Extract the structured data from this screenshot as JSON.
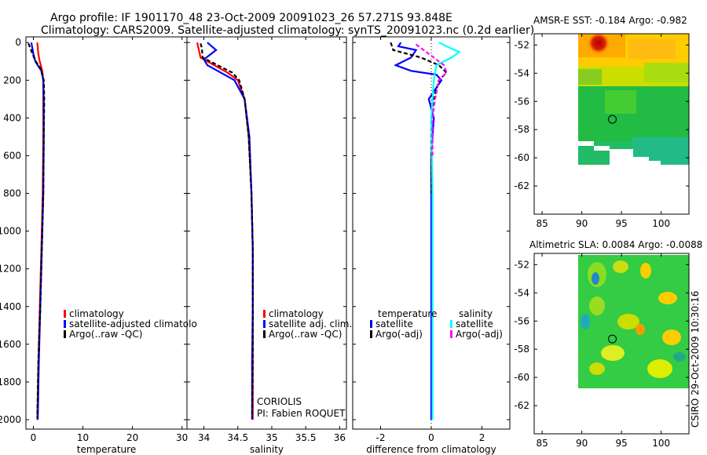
{
  "header": {
    "line1": "Argo profile: IF 1901170_48 23-Oct-2009 20091023_26 57.271S 93.848E",
    "line2": "Climatology: CARS2009. Satellite-adjusted climatology: synTS_20091023.nc (0.2d earlier)"
  },
  "colors": {
    "climatology": "#ff0000",
    "satellite": "#0000ff",
    "argo": "#000000",
    "sal_satellite": "#00ffff",
    "sal_argo": "#ff00ff"
  },
  "footer": {
    "provider": "CORIOLIS",
    "pi": "PI: Fabien ROQUET",
    "stamp": "CSIRO 29-Oct-2009 10:30:16"
  },
  "chart_data": [
    {
      "type": "line",
      "name": "temperature",
      "xlabel": "temperature",
      "xlim": [
        -1.5,
        31
      ],
      "ylim": [
        2050,
        -30
      ],
      "xticks": [
        0,
        10,
        20,
        30
      ],
      "yticks": [
        0,
        200,
        400,
        600,
        800,
        1000,
        1200,
        1400,
        1600,
        1800,
        2000
      ],
      "legend": {
        "position": "lower-middle",
        "entries": [
          "climatology",
          "satellite-adjusted climatolo",
          "Argo(..raw -QC)"
        ]
      },
      "series": [
        {
          "name": "climatology",
          "color": "#ff0000",
          "dash": "",
          "x": [
            0.8,
            0.9,
            1.0,
            1.2,
            1.8,
            2.0,
            2.0,
            2.0,
            1.9,
            1.6,
            1.3,
            1.0,
            0.8
          ],
          "y": [
            0,
            30,
            60,
            90,
            150,
            200,
            300,
            500,
            800,
            1100,
            1400,
            1700,
            2000
          ]
        },
        {
          "name": "satellite-adjusted climatology",
          "color": "#0000ff",
          "dash": "",
          "x": [
            -0.4,
            -0.2,
            0.0,
            0.4,
            1.6,
            2.0,
            2.1,
            2.1,
            2.0,
            1.7,
            1.4,
            1.1,
            0.9
          ],
          "y": [
            0,
            30,
            60,
            100,
            150,
            200,
            300,
            500,
            800,
            1100,
            1400,
            1700,
            2000
          ]
        },
        {
          "name": "Argo(..raw -QC)",
          "color": "#000000",
          "dash": "5,3",
          "x": [
            -1.0,
            -0.6,
            -0.2,
            0.5,
            1.5,
            2.1,
            2.2,
            2.1,
            2.0,
            1.7,
            1.4,
            1.0,
            0.8
          ],
          "y": [
            5,
            30,
            60,
            100,
            140,
            200,
            300,
            500,
            800,
            1100,
            1400,
            1700,
            1990
          ]
        }
      ]
    },
    {
      "type": "line",
      "name": "salinity",
      "xlabel": "salinity",
      "xlim": [
        33.75,
        36.1
      ],
      "ylim": [
        2050,
        -30
      ],
      "xticks": [
        34,
        34.5,
        35,
        35.5,
        36
      ],
      "xticklabels": [
        "34",
        "34.5",
        "35",
        "35.5",
        "36"
      ],
      "legend": {
        "position": "lower-middle",
        "entries": [
          "climatology",
          "satellite adj. clim.",
          "Argo(..raw -QC)"
        ]
      },
      "series": [
        {
          "name": "climatology",
          "color": "#ff0000",
          "dash": "",
          "x": [
            33.9,
            33.92,
            33.95,
            34.15,
            34.35,
            34.5,
            34.6,
            34.66,
            34.7,
            34.72,
            34.72,
            34.72,
            34.72
          ],
          "y": [
            0,
            30,
            80,
            120,
            160,
            200,
            300,
            500,
            800,
            1100,
            1400,
            1700,
            2000
          ]
        },
        {
          "name": "satellite adj. clim.",
          "color": "#0000ff",
          "dash": "",
          "x": [
            34.05,
            34.18,
            34.0,
            34.05,
            34.25,
            34.45,
            34.6,
            34.67,
            34.7,
            34.72,
            34.72,
            34.71,
            34.71
          ],
          "y": [
            0,
            40,
            90,
            120,
            160,
            200,
            300,
            500,
            800,
            1100,
            1400,
            1700,
            2000
          ]
        },
        {
          "name": "Argo(..raw -QC)",
          "color": "#000000",
          "dash": "5,3",
          "x": [
            33.95,
            33.97,
            33.98,
            34.2,
            34.42,
            34.52,
            34.6,
            34.66,
            34.7,
            34.72,
            34.72,
            34.72,
            34.71
          ],
          "y": [
            5,
            30,
            80,
            120,
            160,
            200,
            300,
            500,
            800,
            1100,
            1400,
            1700,
            1990
          ]
        }
      ]
    },
    {
      "type": "line",
      "name": "difference",
      "xlabel": "difference from climatology",
      "xlim": [
        -3.1,
        3.1
      ],
      "ylim": [
        2050,
        -30
      ],
      "xticks": [
        -2,
        0,
        2
      ],
      "legend": {
        "position": "lower-middle",
        "headers": [
          "temperature",
          "salinity"
        ],
        "entries": [
          "satellite",
          "Argo(-adj)",
          "satellite",
          "Argo(-adj)"
        ]
      },
      "series": [
        {
          "name": "temperature satellite",
          "color": "#0000ff",
          "dash": "",
          "x": [
            -1.2,
            -1.3,
            -0.6,
            -0.8,
            -1.4,
            -0.8,
            0.2,
            0.4,
            -0.1,
            0.1,
            0.0,
            0.0,
            0.0,
            0.0
          ],
          "y": [
            0,
            20,
            40,
            80,
            120,
            150,
            170,
            200,
            300,
            400,
            600,
            1000,
            1500,
            2000
          ]
        },
        {
          "name": "temperature Argo(-adj)",
          "color": "#000000",
          "dash": "5,3",
          "x": [
            -1.6,
            -1.5,
            -0.4,
            0.3,
            0.6,
            0.3,
            0.1,
            0.0,
            0.0,
            0.0
          ],
          "y": [
            0,
            40,
            80,
            120,
            160,
            200,
            300,
            400,
            600,
            800
          ]
        },
        {
          "name": "salinity satellite",
          "color": "#00ffff",
          "dash": "",
          "x": [
            0.3,
            0.6,
            1.1,
            0.8,
            0.2,
            0.1,
            0.0,
            0.05,
            0.05,
            0.05
          ],
          "y": [
            0,
            20,
            50,
            80,
            120,
            200,
            400,
            800,
            1400,
            2000
          ]
        },
        {
          "name": "salinity Argo(-adj)",
          "color": "#ff00ff",
          "dash": "5,3",
          "x": [
            -0.6,
            -0.1,
            0.5,
            0.6,
            0.3,
            0.15,
            0.05,
            0.05
          ],
          "y": [
            10,
            60,
            120,
            160,
            200,
            300,
            400,
            600
          ]
        }
      ]
    },
    {
      "type": "heatmap",
      "name": "sst-map",
      "title": "AMSR-E SST: -0.184  Argo: -0.982",
      "xlim": [
        84,
        103.5
      ],
      "ylim": [
        -64,
        -51.2
      ],
      "xticks": [
        85,
        90,
        95,
        100
      ],
      "yticks": [
        -52,
        -54,
        -56,
        -58,
        -60,
        -62
      ],
      "marker": {
        "lon": 93.85,
        "lat": -57.27
      }
    },
    {
      "type": "heatmap",
      "name": "sla-map",
      "title": "Altimetric SLA: 0.0084  Argo: -0.0088",
      "xlim": [
        84,
        103.5
      ],
      "ylim": [
        -64,
        -51.2
      ],
      "xticks": [
        85,
        90,
        95,
        100
      ],
      "yticks": [
        -52,
        -54,
        -56,
        -58,
        -60,
        -62
      ],
      "marker": {
        "lon": 93.85,
        "lat": -57.27
      }
    }
  ]
}
